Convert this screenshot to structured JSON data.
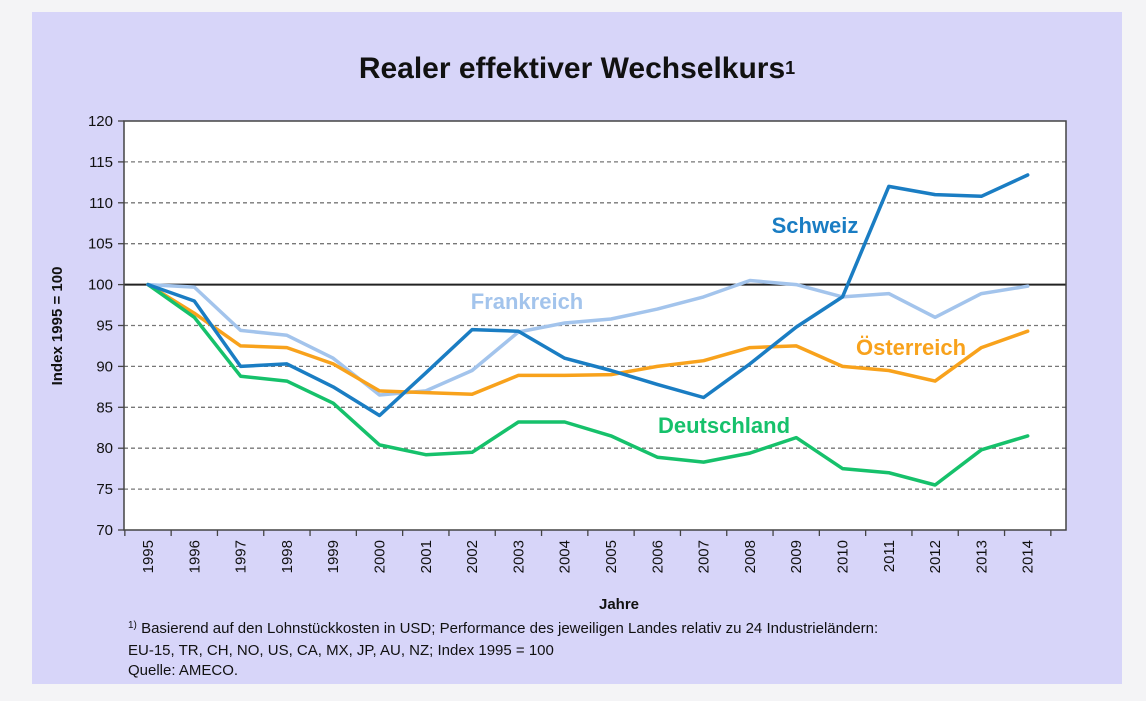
{
  "chart_data": {
    "type": "line",
    "title": "Realer effektiver Wechselkurs",
    "title_superscript": "1",
    "xlabel": "Jahre",
    "ylabel": "Index 1995 = 100",
    "ylim": [
      70,
      120
    ],
    "yticks": [
      70,
      75,
      80,
      85,
      90,
      95,
      100,
      105,
      110,
      115,
      120
    ],
    "reference_line": 100,
    "categories": [
      "1995",
      "1996",
      "1997",
      "1998",
      "1999",
      "2000",
      "2001",
      "2002",
      "2003",
      "2004",
      "2005",
      "2006",
      "2007",
      "2008",
      "2009",
      "2010",
      "2011",
      "2012",
      "2013",
      "2014"
    ],
    "series": [
      {
        "name": "Schweiz",
        "color": "#1a7dc3",
        "values": [
          100,
          98,
          90,
          90.3,
          87.5,
          84,
          89.2,
          94.5,
          94.3,
          91,
          89.5,
          87.8,
          86.2,
          90.3,
          94.8,
          98.5,
          112,
          111,
          110.8,
          113.4
        ]
      },
      {
        "name": "Frankreich",
        "color": "#a3c4ec",
        "values": [
          100,
          99.7,
          94.4,
          93.8,
          91,
          86.5,
          87,
          89.5,
          94.2,
          95.3,
          95.8,
          97,
          98.5,
          100.5,
          100,
          98.5,
          98.9,
          96,
          98.9,
          99.8
        ]
      },
      {
        "name": "Österreich",
        "color": "#f8a21c",
        "values": [
          100,
          96.5,
          92.5,
          92.3,
          90.3,
          87,
          86.8,
          86.6,
          88.9,
          88.9,
          89,
          90,
          90.7,
          92.3,
          92.5,
          90,
          89.5,
          88.2,
          92.3,
          94.3
        ]
      },
      {
        "name": "Deutschland",
        "color": "#16c16b",
        "values": [
          100,
          96,
          88.8,
          88.2,
          85.5,
          80.4,
          79.2,
          79.5,
          83.2,
          83.2,
          81.5,
          78.9,
          78.3,
          79.4,
          81.3,
          77.5,
          77,
          75.5,
          79.8,
          81.5
        ]
      }
    ]
  },
  "footnote": {
    "mark": "1)",
    "line1": "Basierend auf den Lohnstückkosten in USD; Performance des jeweiligen Landes relativ  zu 24 Industrieländern:",
    "line2": "EU-15, TR, CH, NO, US, CA, MX, JP, AU, NZ; Index 1995 = 100",
    "line3": "Quelle: AMECO."
  }
}
